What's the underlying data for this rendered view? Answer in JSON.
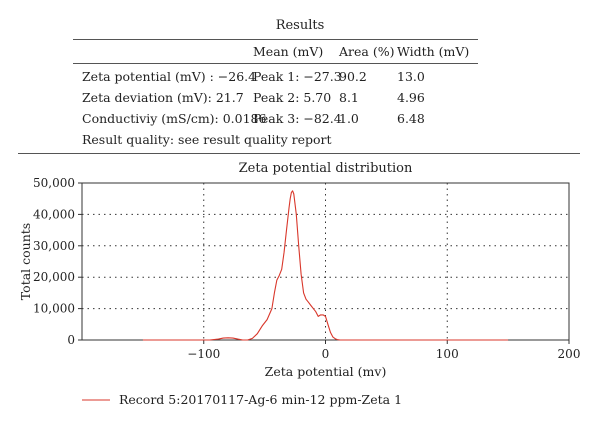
{
  "results": {
    "title": "Results",
    "columns": [
      "Mean (mV)",
      "Area (%)",
      "Width (mV)"
    ],
    "rows": [
      {
        "label": "Zeta potential (mV) : −26.4",
        "peak": "Peak 1: −27.3",
        "area": "90.2",
        "width": "13.0"
      },
      {
        "label": "Zeta deviation (mV): 21.7",
        "peak": "Peak 2: 5.70",
        "area": "8.1",
        "width": "4.96"
      },
      {
        "label": "Conductiviy (mS/cm): 0.0186",
        "peak": "Peak 3: −82.4",
        "area": "1.0",
        "width": "6.48"
      }
    ],
    "quality": "Result quality: see result quality report"
  },
  "chart_data": {
    "type": "line",
    "title": "Zeta potential distribution",
    "xlabel": "Zeta potential (mv)",
    "ylabel": "Total counts",
    "xlim": [
      -200,
      200
    ],
    "ylim": [
      0,
      50000
    ],
    "xticks": [
      -100,
      0,
      100,
      200
    ],
    "xtick_labels": [
      "−100",
      "0",
      "100",
      "200"
    ],
    "yticks": [
      0,
      10000,
      20000,
      30000,
      40000,
      50000
    ],
    "ytick_labels": [
      "0",
      "10,000",
      "20,000",
      "30,000",
      "40,000",
      "50,000"
    ],
    "grid": true,
    "legend_position": "bottom-left",
    "series": [
      {
        "name": "Record 5:20170117-Ag-6 min-12 ppm-Zeta 1",
        "color": "#d9372b",
        "x": [
          -150,
          -95,
          -88,
          -84,
          -80,
          -76,
          -72,
          -68,
          -64,
          -60,
          -56,
          -52,
          -48,
          -44,
          -42,
          -40,
          -38,
          -36,
          -34,
          -32,
          -30,
          -29,
          -28,
          -27,
          -26,
          -24,
          -22,
          -20,
          -18,
          -16,
          -14,
          -12,
          -10,
          -8,
          -6,
          -4,
          -2,
          0,
          2,
          4,
          6,
          8,
          10,
          12,
          14,
          16,
          20,
          30,
          150
        ],
        "y": [
          0,
          0,
          300,
          600,
          700,
          600,
          300,
          0,
          0,
          500,
          2000,
          4500,
          6500,
          10000,
          15000,
          19000,
          20500,
          22500,
          28000,
          35000,
          42000,
          45000,
          47000,
          47500,
          46500,
          40000,
          30000,
          21000,
          15000,
          13000,
          12000,
          11000,
          10000,
          9000,
          7500,
          8000,
          8000,
          7500,
          5000,
          2500,
          1000,
          400,
          100,
          0,
          0,
          0,
          0,
          0,
          0
        ]
      }
    ]
  }
}
